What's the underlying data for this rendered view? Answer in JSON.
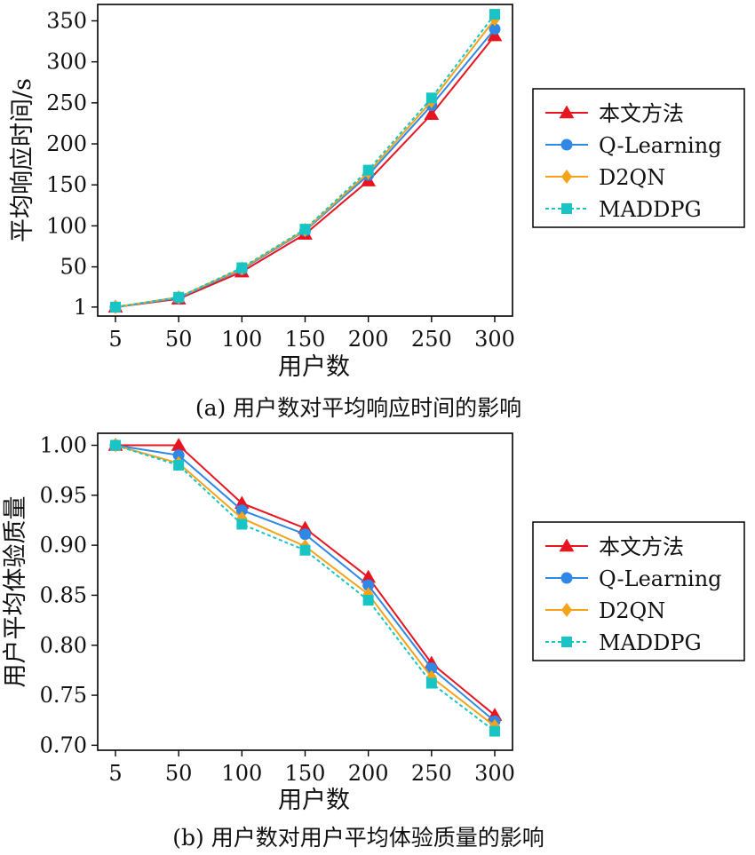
{
  "chart_data": [
    {
      "type": "line",
      "caption": "(a) 用户数对平均响应时间的影响",
      "xlabel": "用户数",
      "ylabel": "平均响应时间/s",
      "categories": [
        "5",
        "50",
        "100",
        "150",
        "200",
        "250",
        "300"
      ],
      "yticks": [
        "1",
        "50",
        "100",
        "150",
        "200",
        "250",
        "300",
        "350"
      ],
      "ylim": [
        -10,
        370
      ],
      "grid": false,
      "legend_position": "right",
      "series": [
        {
          "name": "本文方法",
          "marker": "triangle",
          "dash": "solid",
          "color": "#e8141f",
          "values": [
            1,
            11,
            44,
            90,
            155,
            236,
            332
          ]
        },
        {
          "name": "Q-Learning",
          "marker": "circle",
          "dash": "solid",
          "color": "#2f88e6",
          "values": [
            1,
            12,
            47,
            94,
            162,
            247,
            340
          ]
        },
        {
          "name": "D2QN",
          "marker": "diamond",
          "dash": "solid",
          "color": "#f5a41a",
          "values": [
            1,
            13,
            48,
            95,
            165,
            252,
            352
          ]
        },
        {
          "name": "MADDPG",
          "marker": "square",
          "dash": "dotted",
          "color": "#19c4c4",
          "values": [
            1,
            13,
            49,
            96,
            168,
            256,
            358
          ]
        }
      ]
    },
    {
      "type": "line",
      "caption": "(b) 用户数对用户平均体验质量的影响",
      "xlabel": "用户数",
      "ylabel": "用户平均体验质量",
      "categories": [
        "5",
        "50",
        "100",
        "150",
        "200",
        "250",
        "300"
      ],
      "yticks": [
        "0.70",
        "0.75",
        "0.80",
        "0.85",
        "0.90",
        "0.95",
        "1.00"
      ],
      "ylim": [
        0.695,
        1.012
      ],
      "grid": false,
      "legend_position": "right",
      "series": [
        {
          "name": "本文方法",
          "marker": "triangle",
          "dash": "solid",
          "color": "#e8141f",
          "values": [
            1.0,
            1.0,
            0.942,
            0.917,
            0.868,
            0.782,
            0.73
          ]
        },
        {
          "name": "Q-Learning",
          "marker": "circle",
          "dash": "solid",
          "color": "#2f88e6",
          "values": [
            1.0,
            0.99,
            0.935,
            0.911,
            0.86,
            0.777,
            0.724
          ]
        },
        {
          "name": "D2QN",
          "marker": "diamond",
          "dash": "solid",
          "color": "#f5a41a",
          "values": [
            1.0,
            0.982,
            0.927,
            0.899,
            0.851,
            0.768,
            0.719
          ]
        },
        {
          "name": "MADDPG",
          "marker": "square",
          "dash": "dotted",
          "color": "#19c4c4",
          "values": [
            1.0,
            0.98,
            0.921,
            0.895,
            0.845,
            0.762,
            0.714
          ]
        }
      ]
    }
  ]
}
